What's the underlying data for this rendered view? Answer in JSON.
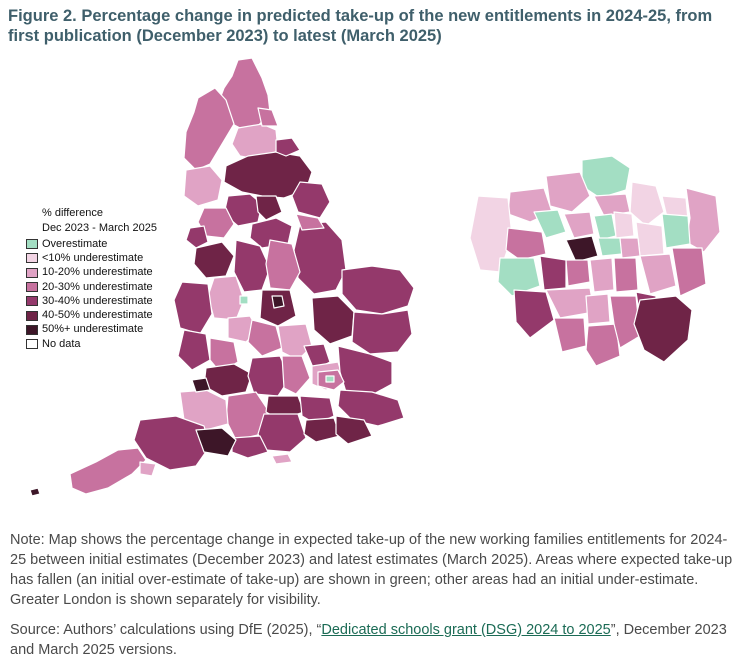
{
  "title": "Figure 2. Percentage change in predicted take-up of the new entitlements in 2024-25, from first publication (December 2023) to latest (March 2025)",
  "legend": {
    "title_line1": "% difference",
    "title_line2": "Dec 2023 - March 2025",
    "items": [
      {
        "label": "Overestimate",
        "color": "#a3dec3"
      },
      {
        "label": "<10% underestimate",
        "color": "#f2d4e4"
      },
      {
        "label": "10-20% underestimate",
        "color": "#e0a3c5"
      },
      {
        "label": "20-30% underestimate",
        "color": "#c7729f"
      },
      {
        "label": "30-40% underestimate",
        "color": "#94396b"
      },
      {
        "label": "40-50% underestimate",
        "color": "#6f2447"
      },
      {
        "label": "50%+ underestimate",
        "color": "#3d1628"
      },
      {
        "label": "No data",
        "color": "#ffffff"
      }
    ]
  },
  "note": "Note: Map shows the percentage change in expected take-up of the new working families entitlements for 2024-25 between initial estimates (December 2023) and latest estimates (March 2025). Areas where expected take-up has fallen (an initial over-estimate of take-up) are shown in green; other areas had an initial under-estimate. Greater London is shown separately for visibility.",
  "source": {
    "prefix": "Source: Authors’ calculations using DfE (2025), “",
    "link_text": "Dedicated schools grant (DSG) 2024 to 2025",
    "suffix": "”, December 2023 and March 2025 versions."
  }
}
